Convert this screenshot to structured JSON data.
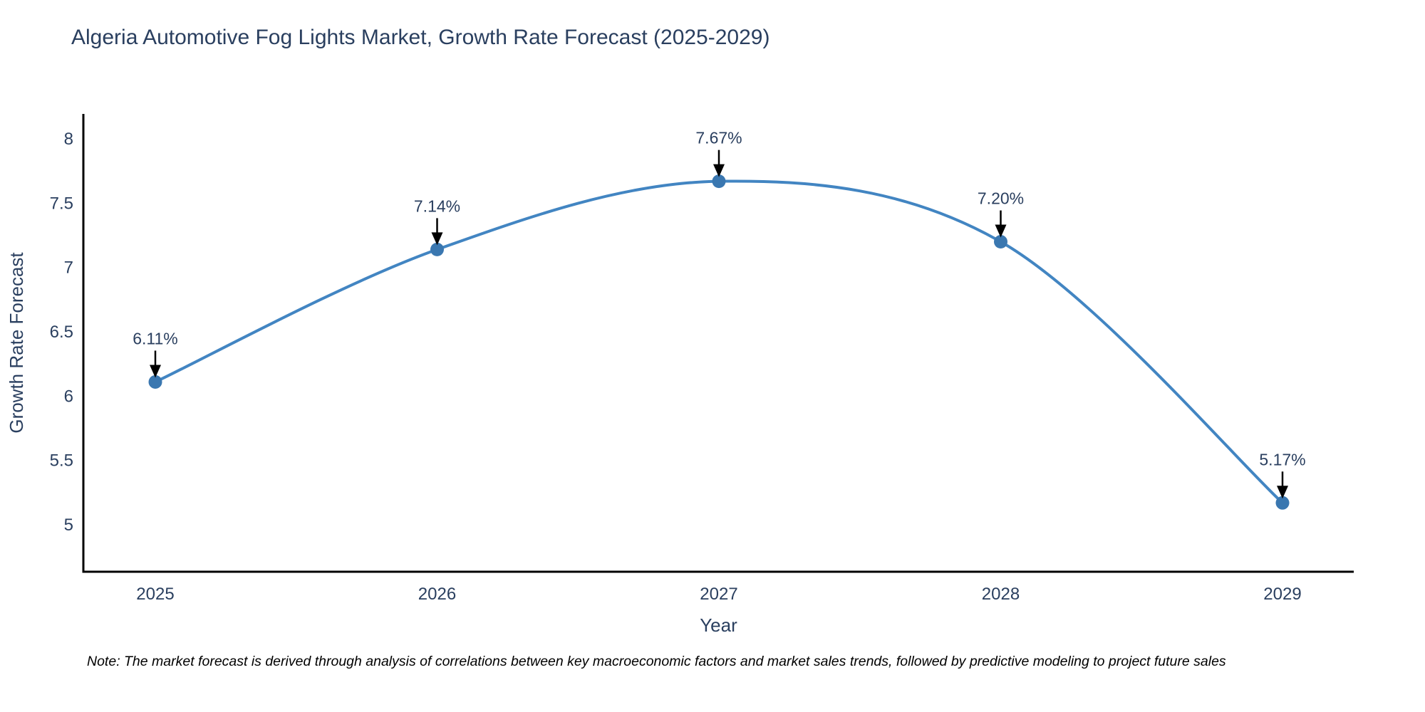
{
  "header": {
    "title": "Algeria Automotive Fog Lights Market, Growth Rate Forecast (2025-2029)"
  },
  "chart_data": {
    "type": "line",
    "line_shape": "spline",
    "x": [
      2025,
      2026,
      2027,
      2028,
      2029
    ],
    "values": [
      6.11,
      7.14,
      7.67,
      7.2,
      5.17
    ],
    "point_labels": [
      "6.11%",
      "7.14%",
      "7.67%",
      "7.20%",
      "5.17%"
    ],
    "title": "Algeria Automotive Fog Lights Market, Growth Rate Forecast (2025-2029)",
    "xlabel": "Year",
    "ylabel": "Growth Rate Forecast",
    "xticks": [
      "2025",
      "2026",
      "2027",
      "2028",
      "2029"
    ],
    "yticks": [
      8,
      7.5,
      7,
      6.5,
      6,
      5.5,
      5
    ],
    "ylim": [
      4.64,
      8.19
    ],
    "grid": false,
    "legend_position": "none",
    "line_color": "#4285c2",
    "marker_color": "#3a77b0",
    "axis_color": "#000000",
    "tick_color": "#2a3f5f",
    "annotation_color": "#2a3f5f",
    "arrow_color": "#000000"
  },
  "note": {
    "text": "Note: The market forecast is derived through analysis of correlations between key macroeconomic factors and market sales trends, followed by predictive modeling to project future sales"
  }
}
